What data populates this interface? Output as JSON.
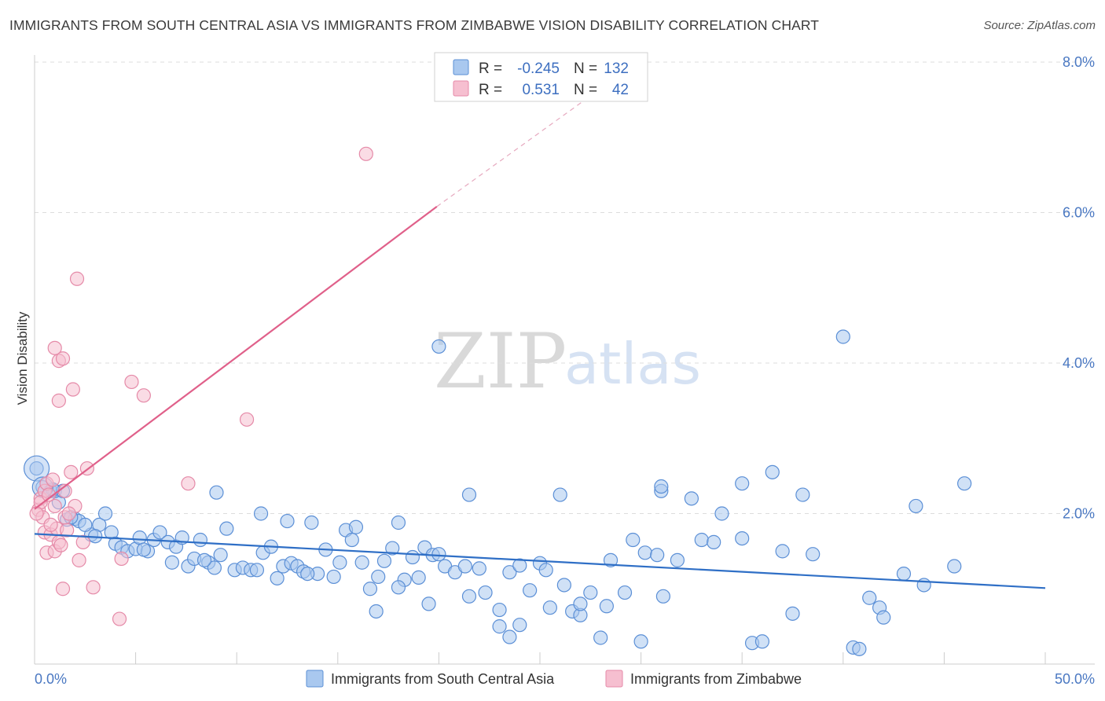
{
  "header": {
    "title": "IMMIGRANTS FROM SOUTH CENTRAL ASIA VS IMMIGRANTS FROM ZIMBABWE VISION DISABILITY CORRELATION CHART",
    "source": "Source: ZipAtlas.com"
  },
  "watermark": {
    "zip": "ZIP",
    "atlas": "atlas"
  },
  "colors": {
    "blue_fill": "#a9c8ef",
    "blue_stroke": "#5b8fd6",
    "blue_line": "#2f6fc6",
    "pink_fill": "#f6bfd0",
    "pink_stroke": "#e58aa8",
    "pink_line": "#e0608a",
    "grid": "#dddddd",
    "axis_text": "#4a78c2"
  },
  "legend": {
    "rows": [
      {
        "r_label": "R =",
        "r_value": "-0.245",
        "n_label": "N =",
        "n_value": "132"
      },
      {
        "r_label": "R =",
        "r_value": "0.531",
        "n_label": "N =",
        "n_value": "42"
      }
    ]
  },
  "bottom_legend": {
    "items": [
      {
        "label": "Immigrants from South Central Asia"
      },
      {
        "label": "Immigrants from Zimbabwe"
      }
    ]
  },
  "chart_data": {
    "type": "scatter",
    "title": "IMMIGRANTS FROM SOUTH CENTRAL ASIA VS IMMIGRANTS FROM ZIMBABWE VISION DISABILITY CORRELATION CHART",
    "xlabel": "",
    "ylabel": "Vision Disability",
    "xlim": [
      0,
      50
    ],
    "ylim": [
      0,
      8
    ],
    "x_tick_labels": [
      "0.0%",
      "50.0%"
    ],
    "y_ticks": [
      2,
      4,
      6,
      8
    ],
    "y_tick_labels": [
      "2.0%",
      "4.0%",
      "6.0%",
      "8.0%"
    ],
    "grid": true,
    "series": [
      {
        "name": "Immigrants from South Central Asia",
        "color": "#a9c8ef",
        "trend": {
          "x0": 0,
          "y0": 1.73,
          "x1": 50,
          "y1": 1.01
        },
        "points": [
          [
            0.1,
            2.6
          ],
          [
            0.4,
            2.35
          ],
          [
            0.8,
            2.3
          ],
          [
            1.2,
            2.15
          ],
          [
            1.6,
            1.92
          ],
          [
            2.0,
            1.93
          ],
          [
            2.2,
            1.9
          ],
          [
            1.0,
            2.3
          ],
          [
            1.4,
            2.3
          ],
          [
            2.8,
            1.72
          ],
          [
            3.2,
            1.85
          ],
          [
            3.5,
            2.0
          ],
          [
            3.8,
            1.75
          ],
          [
            4.0,
            1.6
          ],
          [
            4.3,
            1.55
          ],
          [
            4.6,
            1.5
          ],
          [
            5.0,
            1.53
          ],
          [
            5.2,
            1.68
          ],
          [
            5.6,
            1.5
          ],
          [
            5.9,
            1.65
          ],
          [
            6.2,
            1.75
          ],
          [
            6.6,
            1.62
          ],
          [
            7.0,
            1.56
          ],
          [
            7.3,
            1.68
          ],
          [
            6.8,
            1.35
          ],
          [
            7.6,
            1.3
          ],
          [
            7.9,
            1.4
          ],
          [
            8.2,
            1.65
          ],
          [
            8.6,
            1.35
          ],
          [
            8.9,
            1.28
          ],
          [
            9.2,
            1.45
          ],
          [
            9.5,
            1.8
          ],
          [
            9.9,
            1.25
          ],
          [
            10.3,
            1.28
          ],
          [
            10.7,
            1.25
          ],
          [
            11.0,
            1.25
          ],
          [
            11.3,
            1.48
          ],
          [
            11.7,
            1.56
          ],
          [
            12.0,
            1.14
          ],
          [
            12.3,
            1.3
          ],
          [
            12.7,
            1.34
          ],
          [
            13.0,
            1.3
          ],
          [
            13.3,
            1.23
          ],
          [
            13.7,
            1.88
          ],
          [
            14.0,
            1.2
          ],
          [
            14.4,
            1.52
          ],
          [
            14.8,
            1.16
          ],
          [
            15.1,
            1.35
          ],
          [
            15.4,
            1.78
          ],
          [
            15.7,
            1.65
          ],
          [
            15.9,
            1.82
          ],
          [
            16.2,
            1.35
          ],
          [
            16.6,
            1.0
          ],
          [
            17.0,
            1.16
          ],
          [
            17.3,
            1.37
          ],
          [
            17.7,
            1.54
          ],
          [
            18.0,
            1.88
          ],
          [
            18.3,
            1.12
          ],
          [
            18.7,
            1.42
          ],
          [
            19.0,
            1.15
          ],
          [
            19.3,
            1.55
          ],
          [
            19.7,
            1.45
          ],
          [
            20.0,
            1.46
          ],
          [
            20.3,
            1.3
          ],
          [
            20.8,
            1.22
          ],
          [
            21.3,
            1.3
          ],
          [
            22.0,
            1.27
          ],
          [
            22.3,
            0.95
          ],
          [
            23.0,
            0.72
          ],
          [
            23.5,
            1.22
          ],
          [
            24.0,
            1.31
          ],
          [
            24.5,
            0.98
          ],
          [
            25.0,
            1.34
          ],
          [
            25.3,
            1.25
          ],
          [
            26.2,
            1.05
          ],
          [
            26.6,
            0.7
          ],
          [
            27.0,
            0.65
          ],
          [
            26.0,
            2.25
          ],
          [
            28.3,
            0.77
          ],
          [
            28.5,
            1.38
          ],
          [
            29.2,
            0.95
          ],
          [
            29.6,
            1.65
          ],
          [
            30.2,
            1.48
          ],
          [
            30.8,
            1.45
          ],
          [
            31.1,
            0.9
          ],
          [
            31.8,
            1.38
          ],
          [
            33.0,
            1.65
          ],
          [
            33.6,
            1.62
          ],
          [
            35.0,
            1.67
          ],
          [
            37.0,
            1.5
          ],
          [
            38.5,
            1.46
          ],
          [
            40.0,
            4.35
          ],
          [
            41.3,
            0.88
          ],
          [
            41.8,
            0.75
          ],
          [
            42.0,
            0.62
          ],
          [
            43.0,
            1.2
          ],
          [
            44.0,
            1.05
          ],
          [
            46.0,
            2.4
          ],
          [
            45.5,
            1.3
          ],
          [
            36.5,
            2.55
          ],
          [
            35.0,
            2.4
          ],
          [
            32.5,
            2.2
          ],
          [
            31.0,
            2.3
          ],
          [
            21.5,
            2.25
          ],
          [
            34.0,
            2.0
          ],
          [
            38.0,
            2.25
          ],
          [
            37.5,
            0.67
          ],
          [
            27.5,
            0.95
          ],
          [
            24.0,
            0.52
          ],
          [
            23.0,
            0.5
          ],
          [
            23.5,
            0.36
          ],
          [
            20.0,
            4.22
          ],
          [
            30.0,
            0.3
          ],
          [
            35.5,
            0.28
          ],
          [
            36.0,
            0.3
          ],
          [
            31.0,
            2.36
          ],
          [
            9.0,
            2.28
          ],
          [
            11.2,
            2.0
          ],
          [
            12.5,
            1.9
          ],
          [
            19.5,
            0.8
          ],
          [
            21.5,
            0.9
          ],
          [
            25.5,
            0.75
          ],
          [
            27.0,
            0.8
          ],
          [
            16.9,
            0.7
          ],
          [
            40.5,
            0.22
          ],
          [
            40.8,
            0.2
          ],
          [
            28.0,
            0.35
          ],
          [
            18.0,
            1.02
          ],
          [
            13.5,
            1.2
          ],
          [
            8.4,
            1.38
          ],
          [
            5.4,
            1.52
          ],
          [
            3.0,
            1.7
          ],
          [
            2.5,
            1.85
          ],
          [
            1.8,
            1.95
          ],
          [
            0.9,
            2.32
          ],
          [
            43.6,
            2.1
          ]
        ]
      },
      {
        "name": "Immigrants from Zimbabwe",
        "color": "#f6bfd0",
        "trend": {
          "x0": 0,
          "y0": 2.06,
          "x1": 19.9,
          "y1": 6.08,
          "dash_x1": 27.5,
          "dash_y1": 7.55
        },
        "points": [
          [
            0.2,
            2.05
          ],
          [
            0.3,
            2.2
          ],
          [
            0.4,
            1.95
          ],
          [
            0.5,
            2.3
          ],
          [
            0.5,
            1.75
          ],
          [
            0.6,
            2.4
          ],
          [
            0.6,
            1.48
          ],
          [
            0.8,
            1.72
          ],
          [
            0.9,
            2.45
          ],
          [
            1.0,
            1.5
          ],
          [
            1.0,
            2.1
          ],
          [
            1.1,
            1.8
          ],
          [
            1.2,
            1.62
          ],
          [
            1.3,
            1.58
          ],
          [
            1.5,
            2.3
          ],
          [
            1.6,
            1.78
          ],
          [
            1.8,
            2.55
          ],
          [
            2.0,
            2.1
          ],
          [
            1.0,
            4.2
          ],
          [
            1.2,
            4.03
          ],
          [
            1.4,
            4.06
          ],
          [
            1.9,
            3.65
          ],
          [
            1.2,
            3.5
          ],
          [
            2.6,
            2.6
          ],
          [
            2.2,
            1.38
          ],
          [
            2.9,
            1.02
          ],
          [
            1.4,
            1.0
          ],
          [
            2.4,
            1.62
          ],
          [
            4.3,
            1.4
          ],
          [
            4.8,
            3.75
          ],
          [
            5.4,
            3.57
          ],
          [
            7.6,
            2.4
          ],
          [
            10.5,
            3.25
          ],
          [
            4.2,
            0.6
          ],
          [
            2.1,
            5.12
          ],
          [
            16.4,
            6.78
          ],
          [
            0.3,
            2.15
          ],
          [
            0.7,
            2.25
          ],
          [
            1.5,
            1.95
          ],
          [
            0.1,
            2.0
          ],
          [
            0.8,
            1.85
          ],
          [
            1.7,
            2.0
          ]
        ]
      }
    ]
  }
}
